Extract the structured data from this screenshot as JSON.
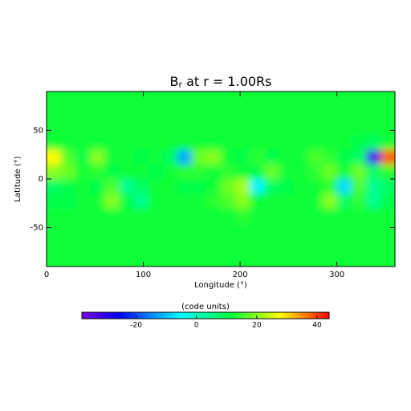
{
  "chart_data": {
    "type": "heatmap",
    "title": "B",
    "title_subscript": "r",
    "title_rest": " at r = 1.00Rs",
    "x_label": "Longitude (°)",
    "y_label": "Latitude (°)",
    "xlim": [
      0,
      360
    ],
    "ylim": [
      -90,
      90
    ],
    "xticks": [
      0,
      100,
      200,
      300
    ],
    "yticks": [
      -50,
      0,
      50
    ],
    "x": [
      7.5,
      22.5,
      37.5,
      52.5,
      67.5,
      82.5,
      97.5,
      112.5,
      127.5,
      142.5,
      157.5,
      172.5,
      187.5,
      202.5,
      217.5,
      232.5,
      247.5,
      262.5,
      277.5,
      292.5,
      307.5,
      322.5,
      337.5,
      352.5
    ],
    "y": [
      82.5,
      67.5,
      52.5,
      37.5,
      22.5,
      7.5,
      -7.5,
      -22.5,
      -37.5,
      -52.5,
      -67.5,
      -82.5
    ],
    "z": [
      [
        12,
        12,
        12,
        12,
        12,
        12,
        12,
        12,
        12,
        12,
        12,
        12,
        12,
        12,
        12,
        12,
        12,
        12,
        12,
        12,
        12,
        12,
        12,
        12
      ],
      [
        12,
        12,
        12,
        12,
        12,
        12,
        12,
        12,
        12,
        12,
        12,
        12,
        12,
        12,
        12,
        12,
        12,
        12,
        12,
        12,
        12,
        12,
        12,
        12
      ],
      [
        12,
        12,
        12,
        12,
        12,
        12,
        12,
        12,
        12,
        12,
        12,
        12,
        12,
        12,
        12,
        12,
        12,
        12,
        12,
        12,
        12,
        12,
        12,
        12
      ],
      [
        12,
        12,
        12,
        12,
        12,
        12,
        12,
        12,
        12,
        12,
        12,
        12,
        12,
        12,
        12,
        12,
        12,
        12,
        12,
        12,
        12,
        10,
        8,
        12
      ],
      [
        28,
        16,
        10,
        20,
        12,
        12,
        10,
        12,
        8,
        -12,
        18,
        20,
        12,
        10,
        14,
        10,
        12,
        12,
        16,
        14,
        10,
        8,
        -32,
        38
      ],
      [
        20,
        18,
        12,
        14,
        10,
        12,
        12,
        10,
        12,
        14,
        14,
        12,
        14,
        12,
        10,
        18,
        12,
        12,
        14,
        18,
        12,
        18,
        8,
        14
      ],
      [
        8,
        10,
        12,
        10,
        16,
        4,
        8,
        12,
        12,
        10,
        10,
        12,
        18,
        22,
        -6,
        8,
        10,
        12,
        12,
        14,
        -8,
        16,
        4,
        8
      ],
      [
        10,
        10,
        12,
        12,
        20,
        10,
        4,
        12,
        12,
        12,
        12,
        14,
        16,
        20,
        12,
        12,
        12,
        12,
        12,
        20,
        8,
        14,
        4,
        10
      ],
      [
        12,
        12,
        12,
        12,
        12,
        12,
        12,
        12,
        12,
        12,
        12,
        12,
        12,
        14,
        12,
        12,
        12,
        12,
        12,
        12,
        12,
        12,
        12,
        12
      ],
      [
        12,
        12,
        12,
        12,
        12,
        12,
        12,
        12,
        12,
        12,
        12,
        12,
        12,
        12,
        12,
        12,
        12,
        12,
        12,
        12,
        12,
        12,
        12,
        12
      ],
      [
        12,
        12,
        12,
        12,
        12,
        12,
        12,
        12,
        12,
        12,
        12,
        12,
        12,
        12,
        12,
        12,
        12,
        12,
        12,
        12,
        12,
        12,
        12,
        12
      ],
      [
        12,
        12,
        12,
        12,
        12,
        12,
        12,
        12,
        12,
        12,
        12,
        12,
        12,
        12,
        12,
        12,
        12,
        12,
        12,
        12,
        12,
        12,
        12,
        12
      ]
    ],
    "colormap": "rainbow",
    "colorbar_label": "(code units)",
    "clim": [
      -38,
      44
    ],
    "colorbar_ticks": [
      -20,
      0,
      20,
      40
    ]
  }
}
